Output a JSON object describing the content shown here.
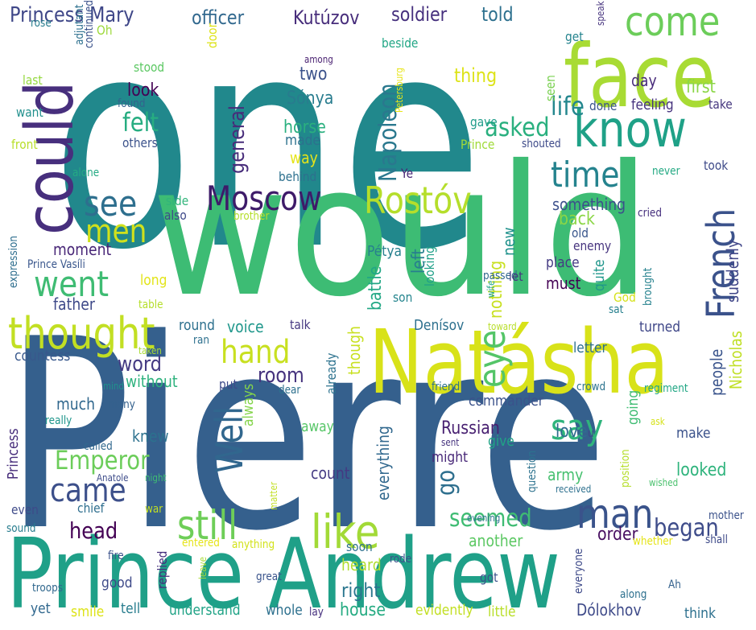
{
  "palette": {
    "background": "#ffffff",
    "colors": [
      "#440154",
      "#472d7b",
      "#3b528b",
      "#2c728e",
      "#21918c",
      "#28ae80",
      "#5ec962",
      "#addc30",
      "#d2e21b",
      "#fde725"
    ]
  },
  "words": [
    {
      "text": "one",
      "color": "#21888c"
    },
    {
      "text": "would",
      "color": "#3dbc74"
    },
    {
      "text": "Pierre",
      "color": "#35608d"
    },
    {
      "text": "Prince Andrew",
      "color": "#1fa088"
    },
    {
      "text": "Natásha",
      "color": "#d8e219"
    },
    {
      "text": "face",
      "color": "#a8db34"
    },
    {
      "text": "know",
      "color": "#1fa187"
    },
    {
      "text": "could",
      "color": "#472f7d"
    },
    {
      "text": "come",
      "color": "#6ccd5a"
    },
    {
      "text": "Moscow",
      "color": "#3e1b69"
    },
    {
      "text": "Rostóv",
      "color": "#b5de2b"
    },
    {
      "text": "French",
      "color": "#3b528b"
    },
    {
      "text": "thought",
      "color": "#c2df23"
    },
    {
      "text": "went",
      "color": "#3fbc73"
    },
    {
      "text": "see",
      "color": "#2e6f8e"
    },
    {
      "text": "men",
      "color": "#d0e11c"
    },
    {
      "text": "time",
      "color": "#25838e"
    },
    {
      "text": "hand",
      "color": "#c8e020"
    },
    {
      "text": "Well",
      "color": "#31678e"
    },
    {
      "text": "say",
      "color": "#2fb47c"
    },
    {
      "text": "eye",
      "color": "#54c568"
    },
    {
      "text": "man",
      "color": "#3a538b"
    },
    {
      "text": "like",
      "color": "#a2da37"
    },
    {
      "text": "still",
      "color": "#6ece58"
    },
    {
      "text": "came",
      "color": "#3c4f8a"
    },
    {
      "text": "Emperor",
      "color": "#6ccd5a"
    },
    {
      "text": "word",
      "color": "#443a83"
    },
    {
      "text": "head",
      "color": "#440154"
    },
    {
      "text": "felt",
      "color": "#27ad81"
    },
    {
      "text": "asked",
      "color": "#2ab07f"
    },
    {
      "text": "room",
      "color": "#46337e"
    },
    {
      "text": "go",
      "color": "#2e6f8e"
    },
    {
      "text": "began",
      "color": "#3e4c8a"
    },
    {
      "text": "seemed",
      "color": "#3fbc73"
    },
    {
      "text": "life",
      "color": "#24878e"
    },
    {
      "text": "Napoleon",
      "color": "#2a788e"
    },
    {
      "text": "general",
      "color": "#472c7a"
    },
    {
      "text": "Princess Mary",
      "color": "#3f4788"
    },
    {
      "text": "officer",
      "color": "#31688e"
    },
    {
      "text": "Kutúzov",
      "color": "#472d7b"
    },
    {
      "text": "soldier",
      "color": "#46307e"
    },
    {
      "text": "told",
      "color": "#2d708e"
    },
    {
      "text": "Sónya",
      "color": "#287c8e"
    },
    {
      "text": "two",
      "color": "#3b528b"
    },
    {
      "text": "look",
      "color": "#440154"
    },
    {
      "text": "thing",
      "color": "#dde318"
    },
    {
      "text": "day",
      "color": "#472a7a"
    },
    {
      "text": "first",
      "color": "#8bd646"
    },
    {
      "text": "horse",
      "color": "#2ab07f"
    },
    {
      "text": "made",
      "color": "#2c718e"
    },
    {
      "text": "way",
      "color": "#e5e419"
    },
    {
      "text": "something",
      "color": "#3c508b"
    },
    {
      "text": "back",
      "color": "#8bd646"
    },
    {
      "text": "new",
      "color": "#20928c"
    },
    {
      "text": "battle",
      "color": "#22a785"
    },
    {
      "text": "left",
      "color": "#277f8e"
    },
    {
      "text": "nothing",
      "color": "#c8e020"
    },
    {
      "text": "moment",
      "color": "#482677"
    },
    {
      "text": "father",
      "color": "#3e4989"
    },
    {
      "text": "voice",
      "color": "#1f978b"
    },
    {
      "text": "without",
      "color": "#2db27d"
    },
    {
      "text": "much",
      "color": "#31688e"
    },
    {
      "text": "knew",
      "color": "#2c718e"
    },
    {
      "text": "always",
      "color": "#84d44b"
    },
    {
      "text": "Russian",
      "color": "#482071"
    },
    {
      "text": "love",
      "color": "#2f6c8e"
    },
    {
      "text": "count",
      "color": "#443a83"
    },
    {
      "text": "everything",
      "color": "#31688e"
    },
    {
      "text": "army",
      "color": "#46c06f"
    },
    {
      "text": "looked",
      "color": "#2eb37c"
    },
    {
      "text": "order",
      "color": "#470e61"
    },
    {
      "text": "another",
      "color": "#5cc863"
    },
    {
      "text": "heard",
      "color": "#b0dd2f"
    },
    {
      "text": "right",
      "color": "#2a768e"
    },
    {
      "text": "house",
      "color": "#25ab82"
    },
    {
      "text": "people",
      "color": "#3a548c"
    },
    {
      "text": "Nicholas",
      "color": "#c0df25"
    },
    {
      "text": "must",
      "color": "#440154"
    },
    {
      "text": "suddenly",
      "color": "#404688"
    },
    {
      "text": "quite",
      "color": "#1f968b"
    },
    {
      "text": "place",
      "color": "#443a83"
    },
    {
      "text": "Pétya",
      "color": "#27808e"
    },
    {
      "text": "Denísov",
      "color": "#2d708e"
    },
    {
      "text": "letter",
      "color": "#2d708e"
    },
    {
      "text": "turned",
      "color": "#3f4788"
    },
    {
      "text": "countess",
      "color": "#38588c"
    },
    {
      "text": "though",
      "color": "#c8e020"
    },
    {
      "text": "talk",
      "color": "#453781"
    },
    {
      "text": "round",
      "color": "#2d708e"
    },
    {
      "text": "long",
      "color": "#e2e418"
    },
    {
      "text": "expression",
      "color": "#2e6e8e"
    },
    {
      "text": "Prince Vasíli",
      "color": "#39568c"
    },
    {
      "text": "front",
      "color": "#b8de29"
    },
    {
      "text": "last",
      "color": "#95d840"
    },
    {
      "text": "want",
      "color": "#21908d"
    },
    {
      "text": "Oh",
      "color": "#9dd93b"
    },
    {
      "text": "rose",
      "color": "#287d8e"
    },
    {
      "text": "stood",
      "color": "#5cc863"
    },
    {
      "text": "door",
      "color": "#dde318"
    },
    {
      "text": "continued",
      "color": "#3b528b"
    },
    {
      "text": "adjutant",
      "color": "#2d708e"
    },
    {
      "text": "found",
      "color": "#33638d"
    },
    {
      "text": "others",
      "color": "#3b528b"
    },
    {
      "text": "behind",
      "color": "#2d708e"
    },
    {
      "text": "alone",
      "color": "#24aa83"
    },
    {
      "text": "side",
      "color": "#31b57b"
    },
    {
      "text": "also",
      "color": "#3e4989"
    },
    {
      "text": "brother",
      "color": "#b5de2b"
    },
    {
      "text": "among",
      "color": "#481f70"
    },
    {
      "text": "beside",
      "color": "#21a685"
    },
    {
      "text": "Petersburg",
      "color": "#e7e419"
    },
    {
      "text": "gave",
      "color": "#1e9c89"
    },
    {
      "text": "Prince",
      "color": "#a0da39"
    },
    {
      "text": "shouted",
      "color": "#3e4a89"
    },
    {
      "text": "seen",
      "color": "#7ad151"
    },
    {
      "text": "done",
      "color": "#3a548c"
    },
    {
      "text": "feeling",
      "color": "#46337e"
    },
    {
      "text": "take",
      "color": "#45377f"
    },
    {
      "text": "get",
      "color": "#25848e"
    },
    {
      "text": "speak",
      "color": "#46337e"
    },
    {
      "text": "never",
      "color": "#23a983"
    },
    {
      "text": "took",
      "color": "#3e4a89"
    },
    {
      "text": "Ye",
      "color": "#482576"
    },
    {
      "text": "old",
      "color": "#39568c"
    },
    {
      "text": "enemy",
      "color": "#46337e"
    },
    {
      "text": "God",
      "color": "#d5e21a"
    },
    {
      "text": "sat",
      "color": "#27808e"
    },
    {
      "text": "cried",
      "color": "#46307e"
    },
    {
      "text": "passed",
      "color": "#31688e"
    },
    {
      "text": "wife",
      "color": "#20a386"
    },
    {
      "text": "brought",
      "color": "#26828e"
    },
    {
      "text": "looking",
      "color": "#1fa088"
    },
    {
      "text": "son",
      "color": "#25858e"
    },
    {
      "text": "let",
      "color": "#45377f"
    },
    {
      "text": "table",
      "color": "#b5de2b"
    },
    {
      "text": "toward",
      "color": "#b8de29"
    },
    {
      "text": "taken",
      "color": "#a8db34"
    },
    {
      "text": "ran",
      "color": "#2d708e"
    },
    {
      "text": "already",
      "color": "#2c728e"
    },
    {
      "text": "mind",
      "color": "#20928c"
    },
    {
      "text": "many",
      "color": "#34618d"
    },
    {
      "text": "dear",
      "color": "#2d708e"
    },
    {
      "text": "friend",
      "color": "#2d708e"
    },
    {
      "text": "commander",
      "color": "#3b528b"
    },
    {
      "text": "crowd",
      "color": "#2c738e"
    },
    {
      "text": "regiment",
      "color": "#22a785"
    },
    {
      "text": "put",
      "color": "#3e4a89"
    },
    {
      "text": "really",
      "color": "#1f968b"
    },
    {
      "text": "Princess",
      "color": "#472d7b"
    },
    {
      "text": "give",
      "color": "#20a386"
    },
    {
      "text": "going",
      "color": "#3fbc73"
    },
    {
      "text": "away",
      "color": "#56c667"
    },
    {
      "text": "make",
      "color": "#3b528b"
    },
    {
      "text": "ask",
      "color": "#d5e21a"
    },
    {
      "text": "u",
      "color": "#3f4788"
    },
    {
      "text": "sent",
      "color": "#46337e"
    },
    {
      "text": "called",
      "color": "#31688e"
    },
    {
      "text": "might",
      "color": "#482878"
    },
    {
      "text": "position",
      "color": "#b5de2b"
    },
    {
      "text": "question",
      "color": "#2c728e"
    },
    {
      "text": "received",
      "color": "#2d708e"
    },
    {
      "text": "wished",
      "color": "#4ac16d"
    },
    {
      "text": "Anatole",
      "color": "#3e4c8a"
    },
    {
      "text": "night",
      "color": "#3fbc73"
    },
    {
      "text": "war",
      "color": "#c2df23"
    },
    {
      "text": "matter",
      "color": "#c2df23"
    },
    {
      "text": "chief",
      "color": "#2e6e8e"
    },
    {
      "text": "even",
      "color": "#3e4a89"
    },
    {
      "text": "sound",
      "color": "#287d8e"
    },
    {
      "text": "evening",
      "color": "#2c738e"
    },
    {
      "text": "mother",
      "color": "#3b528b"
    },
    {
      "text": "entered",
      "color": "#e5e419"
    },
    {
      "text": "anything",
      "color": "#d2e21b"
    },
    {
      "text": "soon",
      "color": "#2d708e"
    },
    {
      "text": "whether",
      "color": "#e5e419"
    },
    {
      "text": "shall",
      "color": "#3e4a89"
    },
    {
      "text": "rode",
      "color": "#3b528b"
    },
    {
      "text": "fire",
      "color": "#3b528b"
    },
    {
      "text": "replied",
      "color": "#46307e"
    },
    {
      "text": "leave",
      "color": "#a8db34"
    },
    {
      "text": "everyone",
      "color": "#3e4a89"
    },
    {
      "text": "great",
      "color": "#3a548c"
    },
    {
      "text": "got",
      "color": "#3b528b"
    },
    {
      "text": "along",
      "color": "#2d708e"
    },
    {
      "text": "Ah",
      "color": "#34618d"
    },
    {
      "text": "good",
      "color": "#3e4a89"
    },
    {
      "text": "troops",
      "color": "#31688e"
    },
    {
      "text": "tell",
      "color": "#287d8e"
    },
    {
      "text": "understand",
      "color": "#20a386"
    },
    {
      "text": "whole",
      "color": "#2d708e"
    },
    {
      "text": "lay",
      "color": "#46307e"
    },
    {
      "text": "evidently",
      "color": "#c2df23"
    },
    {
      "text": "little",
      "color": "#b8de29"
    },
    {
      "text": "Dólokhov",
      "color": "#3e4a89"
    },
    {
      "text": "think",
      "color": "#2d708e"
    },
    {
      "text": "yet",
      "color": "#31688e"
    },
    {
      "text": "smile",
      "color": "#dde318"
    }
  ]
}
